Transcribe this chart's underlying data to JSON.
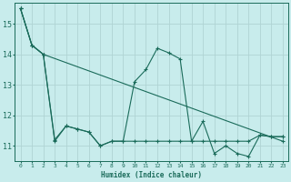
{
  "xlabel": "Humidex (Indice chaleur)",
  "background_color": "#c8ecec",
  "grid_color": "#b0d4d4",
  "line_color": "#1a6b5a",
  "xlim": [
    -0.5,
    23.5
  ],
  "ylim": [
    10.5,
    15.7
  ],
  "yticks": [
    11,
    12,
    13,
    14,
    15
  ],
  "xticks": [
    0,
    1,
    2,
    3,
    4,
    5,
    6,
    7,
    8,
    9,
    10,
    11,
    12,
    13,
    14,
    15,
    16,
    17,
    18,
    19,
    20,
    21,
    22,
    23
  ],
  "series1_x": [
    0,
    1,
    2,
    3,
    4,
    5,
    6,
    7,
    8,
    9,
    10,
    11,
    12,
    13,
    14,
    15,
    16,
    17,
    18,
    19,
    20,
    21,
    22,
    23
  ],
  "series1_y": [
    15.5,
    14.3,
    14.0,
    11.15,
    11.65,
    11.55,
    11.45,
    11.0,
    11.15,
    11.15,
    11.15,
    11.15,
    11.15,
    11.15,
    11.15,
    11.15,
    11.15,
    11.15,
    11.15,
    11.15,
    11.15,
    11.35,
    11.3,
    11.3
  ],
  "series2_x": [
    0,
    1,
    2,
    3,
    4,
    5,
    6,
    7,
    8,
    9,
    10,
    11,
    12,
    13,
    14,
    15,
    16,
    17,
    18,
    19,
    20,
    21,
    22,
    23
  ],
  "series2_y": [
    15.5,
    14.3,
    14.0,
    11.2,
    11.65,
    11.55,
    11.45,
    11.0,
    11.15,
    11.15,
    13.1,
    13.5,
    14.2,
    14.05,
    13.85,
    11.15,
    11.8,
    10.75,
    11.0,
    10.75,
    10.65,
    11.35,
    11.3,
    11.3
  ],
  "series3_x": [
    0,
    1,
    2,
    23
  ],
  "series3_y": [
    15.5,
    14.3,
    14.0,
    11.15
  ]
}
